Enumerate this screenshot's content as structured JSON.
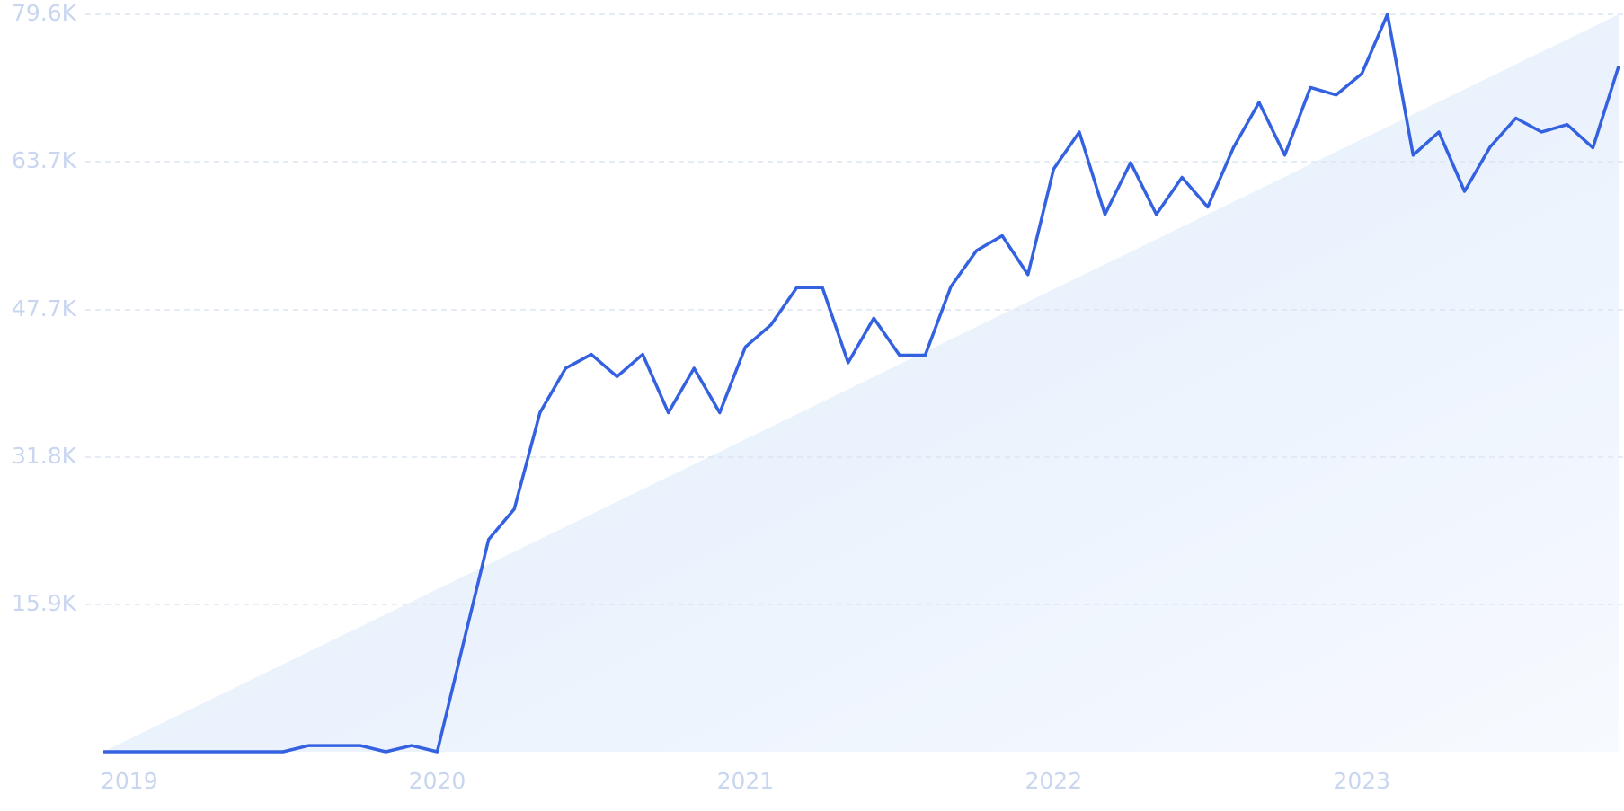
{
  "chart_data": {
    "type": "line",
    "categories": [
      "2019",
      null,
      null,
      null,
      null,
      null,
      null,
      null,
      null,
      null,
      null,
      null,
      null,
      "2020",
      null,
      null,
      null,
      null,
      null,
      null,
      null,
      null,
      null,
      null,
      null,
      "2021",
      null,
      null,
      null,
      null,
      null,
      null,
      null,
      null,
      null,
      null,
      null,
      "2022",
      null,
      null,
      null,
      null,
      null,
      null,
      null,
      null,
      null,
      null,
      null,
      "2023",
      null,
      null,
      null,
      null,
      null,
      null,
      null,
      null,
      null,
      null
    ],
    "series": [
      {
        "color": "#3461e0",
        "values": [
          0,
          0,
          0,
          0,
          0,
          0,
          0,
          0,
          670,
          670,
          670,
          0,
          670,
          0,
          11500,
          22900,
          26200,
          36600,
          41400,
          42900,
          40500,
          42900,
          36600,
          41400,
          36600,
          43700,
          46100,
          50100,
          50100,
          42000,
          46800,
          42800,
          42800,
          50200,
          54100,
          55700,
          51500,
          62900,
          66900,
          58000,
          63600,
          58000,
          62000,
          58800,
          65200,
          70100,
          64400,
          71700,
          70900,
          73200,
          79600,
          64400,
          66900,
          60500,
          65300,
          68400,
          66900,
          67700,
          65200,
          74000
        ]
      }
    ],
    "ylim": [
      0,
      79600
    ],
    "yticks": [
      {
        "value": 15900,
        "label": "15.9K"
      },
      {
        "value": 31800,
        "label": "31.8K"
      },
      {
        "value": 47700,
        "label": "47.7K"
      },
      {
        "value": 63700,
        "label": "63.7K"
      },
      {
        "value": 79600,
        "label": "79.6K"
      }
    ],
    "grid": true
  }
}
